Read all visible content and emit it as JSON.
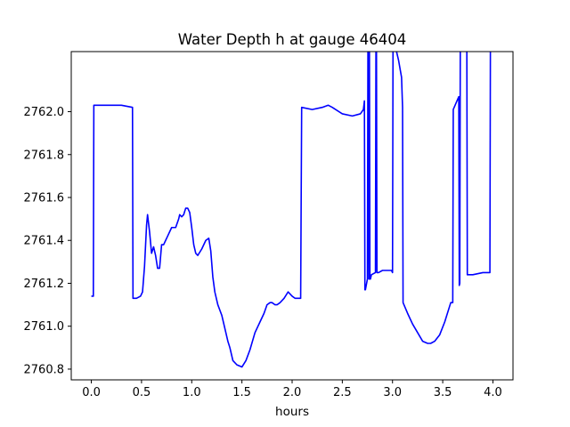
{
  "chart_data": {
    "type": "line",
    "title": "Water Depth h at gauge 46404",
    "xlabel": "hours",
    "ylabel": "",
    "xlim": [
      -0.2,
      4.2
    ],
    "ylim": [
      2760.75,
      2762.28
    ],
    "xticks": [
      0.0,
      0.5,
      1.0,
      1.5,
      2.0,
      2.5,
      3.0,
      3.5,
      4.0
    ],
    "xtick_labels": [
      "0.0",
      "0.5",
      "1.0",
      "1.5",
      "2.0",
      "2.5",
      "3.0",
      "3.5",
      "4.0"
    ],
    "yticks": [
      2760.8,
      2761.0,
      2761.2,
      2761.4,
      2761.6,
      2761.8,
      2762.0
    ],
    "ytick_labels": [
      "2760.8",
      "2761.0",
      "2761.2",
      "2761.4",
      "2761.6",
      "2761.8",
      "2762.0"
    ],
    "grid": false,
    "line_color": "#0000ff",
    "series": [
      {
        "name": "",
        "x": [
          0.0,
          0.02,
          0.025,
          0.1,
          0.2,
          0.3,
          0.41,
          0.415,
          0.45,
          0.49,
          0.51,
          0.53,
          0.55,
          0.56,
          0.58,
          0.6,
          0.62,
          0.64,
          0.66,
          0.68,
          0.7,
          0.72,
          0.74,
          0.76,
          0.8,
          0.84,
          0.87,
          0.88,
          0.9,
          0.92,
          0.94,
          0.96,
          0.98,
          1.0,
          1.02,
          1.04,
          1.06,
          1.1,
          1.14,
          1.17,
          1.19,
          1.21,
          1.23,
          1.26,
          1.3,
          1.34,
          1.36,
          1.38,
          1.41,
          1.45,
          1.5,
          1.54,
          1.58,
          1.63,
          1.68,
          1.72,
          1.75,
          1.78,
          1.8,
          1.83,
          1.85,
          1.88,
          1.92,
          1.96,
          2.0,
          2.03,
          2.06,
          2.085,
          2.095,
          2.2,
          2.3,
          2.36,
          2.4,
          2.5,
          2.6,
          2.68,
          2.71,
          2.715,
          2.72,
          2.725,
          2.73,
          2.75,
          2.755,
          2.76,
          2.765,
          2.77,
          2.775,
          2.78,
          2.79,
          2.83,
          2.835,
          2.84,
          2.845,
          2.86,
          2.9,
          2.95,
          2.99,
          3.0,
          3.005,
          3.03,
          3.06,
          3.09,
          3.1,
          3.105,
          3.15,
          3.2,
          3.25,
          3.3,
          3.35,
          3.38,
          3.42,
          3.47,
          3.52,
          3.58,
          3.6,
          3.605,
          3.66,
          3.665,
          3.67,
          3.675,
          3.69,
          3.73,
          3.74,
          3.745,
          3.8,
          3.9,
          3.97,
          3.975,
          4.0,
          4.02
        ],
        "y": [
          2761.14,
          2761.14,
          2762.03,
          2762.03,
          2762.03,
          2762.03,
          2762.02,
          2761.13,
          2761.13,
          2761.14,
          2761.16,
          2761.28,
          2761.47,
          2761.52,
          2761.44,
          2761.34,
          2761.37,
          2761.33,
          2761.27,
          2761.27,
          2761.38,
          2761.38,
          2761.4,
          2761.42,
          2761.46,
          2761.46,
          2761.5,
          2761.52,
          2761.51,
          2761.52,
          2761.55,
          2761.55,
          2761.53,
          2761.46,
          2761.38,
          2761.34,
          2761.33,
          2761.36,
          2761.4,
          2761.41,
          2761.35,
          2761.23,
          2761.16,
          2761.1,
          2761.05,
          2760.97,
          2760.93,
          2760.9,
          2760.84,
          2760.82,
          2760.81,
          2760.84,
          2760.89,
          2760.97,
          2761.02,
          2761.06,
          2761.1,
          2761.11,
          2761.11,
          2761.1,
          2761.1,
          2761.11,
          2761.13,
          2761.16,
          2761.14,
          2761.13,
          2761.13,
          2761.13,
          2762.02,
          2762.01,
          2762.02,
          2762.03,
          2762.02,
          2761.99,
          2761.98,
          2761.99,
          2762.01,
          2762.03,
          2762.05,
          2761.17,
          2761.17,
          2761.22,
          2762.28,
          2762.29,
          2761.22,
          2762.3,
          2761.22,
          2761.22,
          2761.24,
          2761.25,
          2762.32,
          2762.32,
          2761.25,
          2761.25,
          2761.26,
          2761.26,
          2761.26,
          2761.25,
          2762.32,
          2762.3,
          2762.24,
          2762.16,
          2762.02,
          2761.11,
          2761.06,
          2761.01,
          2760.97,
          2760.93,
          2760.92,
          2760.92,
          2760.93,
          2760.96,
          2761.02,
          2761.11,
          2761.11,
          2762.01,
          2762.07,
          2761.19,
          2761.2,
          2762.3,
          2762.31,
          2762.33,
          2762.33,
          2761.24,
          2761.24,
          2761.25,
          2761.25,
          2762.33,
          2762.33,
          2762.32
        ]
      }
    ]
  }
}
